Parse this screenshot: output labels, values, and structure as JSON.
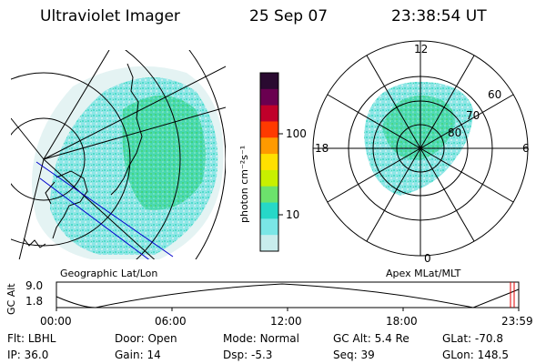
{
  "header": {
    "title": "Ultraviolet Imager",
    "date": "25 Sep 07",
    "time": "23:38:54 UT"
  },
  "left_panel": {
    "label": "Geographic Lat/Lon"
  },
  "right_panel": {
    "label": "Apex MLat/MLT",
    "mlt_labels": {
      "top": "12",
      "right": "6",
      "bottom": "0",
      "left": "18"
    },
    "lat_labels": [
      "60",
      "70",
      "80"
    ]
  },
  "colorbar": {
    "unit_label": "photon cm⁻²s⁻¹",
    "ticks": [
      "100",
      "10"
    ],
    "colors": [
      "#2a0a30",
      "#6a0050",
      "#c0002a",
      "#ff3a00",
      "#ff9a00",
      "#ffe000",
      "#c8f000",
      "#6ce26c",
      "#26d8c8",
      "#7ae6e6",
      "#c8ecec"
    ]
  },
  "timeline": {
    "axis_label": "GC Alt",
    "y_ticks": [
      "9.0",
      "1.8"
    ],
    "x_ticks": [
      "00:00",
      "06:00",
      "12:00",
      "18:00",
      "23:59"
    ],
    "marker_color": "#e00000"
  },
  "footer": {
    "row1": [
      {
        "key": "Flt:",
        "value": "LBHL"
      },
      {
        "key": "Door:",
        "value": "Open"
      },
      {
        "key": "Mode:",
        "value": "Normal"
      },
      {
        "key": "GC Alt:",
        "value": "5.4 Re"
      },
      {
        "key": "GLat:",
        "value": "-70.8"
      }
    ],
    "row2": [
      {
        "key": "IP:",
        "value": "36.0"
      },
      {
        "key": "Gain:",
        "value": "14"
      },
      {
        "key": "Dsp:",
        "value": "-5.3"
      },
      {
        "key": "Seq:",
        "value": "39"
      },
      {
        "key": "GLon:",
        "value": "148.5"
      }
    ]
  }
}
